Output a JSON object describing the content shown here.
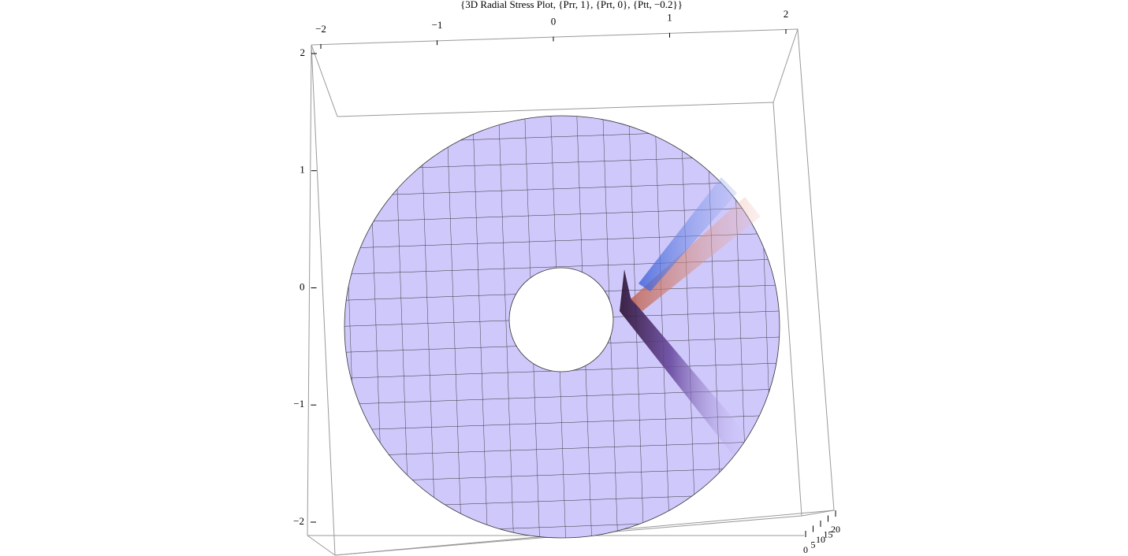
{
  "chart_data": {
    "type": "surface3d",
    "title": "{3D Radial Stress Plot, {Prr, 1}, {Prt, 0}, {Ptt, −0.2}}",
    "xlim": [
      -2,
      2
    ],
    "xticks": [
      {
        "value": -2,
        "label": "−2"
      },
      {
        "value": -1,
        "label": "−1"
      },
      0,
      1,
      2
    ],
    "ylim": [
      -2,
      2
    ],
    "yticks": [
      2,
      1,
      0,
      {
        "value": -1,
        "label": "−1"
      },
      {
        "value": -2,
        "label": "−2"
      }
    ],
    "zlim": [
      0,
      20
    ],
    "zticks": [
      0,
      5,
      10,
      15,
      20
    ],
    "color": "#cfc8fb"
  }
}
